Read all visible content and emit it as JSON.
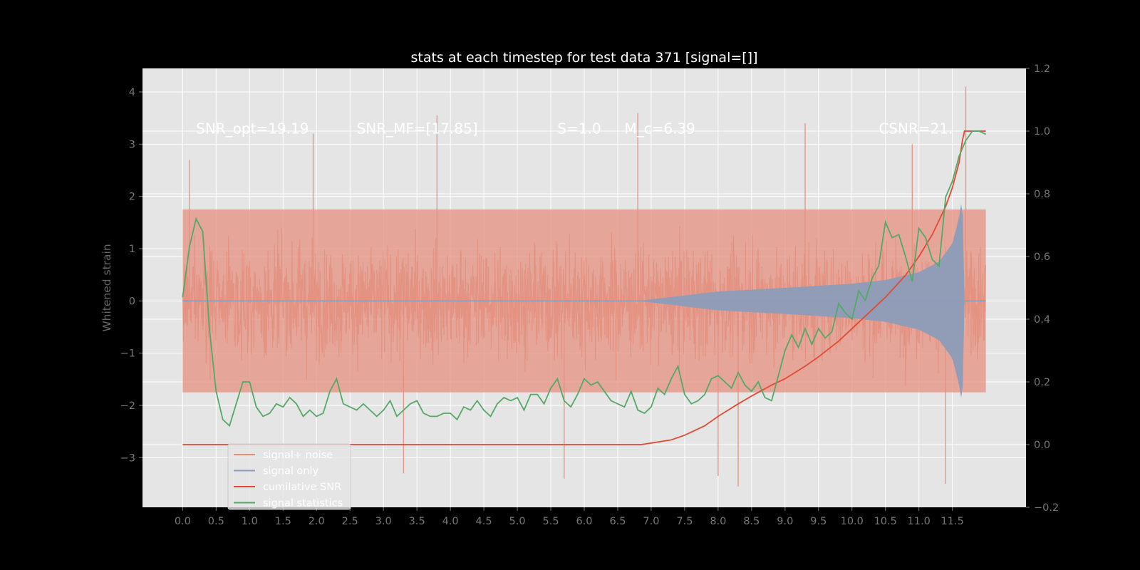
{
  "chart_data": {
    "type": "line",
    "title": "stats at each timestep for test data 371 [signal=[]]",
    "ylabel": "Whitened strain",
    "y2label": "",
    "xlabel": "",
    "xlim": [
      -0.6,
      12.6
    ],
    "ylim": [
      -3.95,
      4.45
    ],
    "y2lim": [
      -0.2,
      1.2
    ],
    "x_ticks": [
      0.0,
      0.5,
      1.0,
      1.5,
      2.0,
      2.5,
      3.0,
      3.5,
      4.0,
      4.5,
      5.0,
      5.5,
      6.0,
      6.5,
      7.0,
      7.5,
      8.0,
      8.5,
      9.0,
      9.5,
      10.0,
      10.5,
      11.0,
      11.5
    ],
    "x_tick_labels": [
      "0.0",
      "0.5",
      "1.0",
      "1.5",
      "2.0",
      "2.5",
      "3.0",
      "3.5",
      "4.0",
      "4.5",
      "5.0",
      "5.5",
      "6.0",
      "6.5",
      "7.0",
      "7.5",
      "8.0",
      "8.5",
      "9.0",
      "9.5",
      "10.0",
      "10.5",
      "11.0",
      "11.5"
    ],
    "y_ticks": [
      -3,
      -2,
      -1,
      0,
      1,
      2,
      3,
      4
    ],
    "y_tick_labels": [
      "−3",
      "−2",
      "−1",
      "0",
      "1",
      "2",
      "3",
      "4"
    ],
    "y2_ticks": [
      -0.2,
      0.0,
      0.2,
      0.4,
      0.6,
      0.8,
      1.0,
      1.2
    ],
    "y2_tick_labels": [
      "−0.2",
      "0.0",
      "0.2",
      "0.4",
      "0.6",
      "0.8",
      "1.0",
      "1.2"
    ],
    "grid": true,
    "legend_position": "lower-left",
    "annotations": [
      {
        "text": "SNR_opt=19.19",
        "x": 0.2,
        "y": 3.2
      },
      {
        "text": "SNR_MF=[17.85]",
        "x": 2.6,
        "y": 3.2
      },
      {
        "text": "S=1.0",
        "x": 5.6,
        "y": 3.2
      },
      {
        "text": "M_c=6.39",
        "x": 6.6,
        "y": 3.2
      },
      {
        "text": "CSNR=21.",
        "x": 10.4,
        "y": 3.2
      }
    ],
    "series": [
      {
        "name": "signal+ noise",
        "axis": "left",
        "color": "#e4907f",
        "kind": "noise",
        "x_start": 0.0,
        "x_end": 12.0,
        "envelope": 1.75,
        "outliers": [
          [
            0.1,
            2.7
          ],
          [
            1.95,
            3.2
          ],
          [
            3.8,
            3.55
          ],
          [
            3.3,
            -3.3
          ],
          [
            5.7,
            -3.4
          ],
          [
            6.8,
            3.6
          ],
          [
            8.0,
            -3.35
          ],
          [
            8.3,
            -3.55
          ],
          [
            9.3,
            3.4
          ],
          [
            11.7,
            4.1
          ],
          [
            11.4,
            -3.5
          ],
          [
            10.9,
            3.0
          ]
        ]
      },
      {
        "name": "signal only",
        "axis": "left",
        "color": "#8c9cb8",
        "kind": "chirp",
        "x_start": 0.0,
        "x_end": 12.0,
        "onset": 6.8,
        "merger": 11.65,
        "amplitude_profile": [
          [
            6.8,
            0.0
          ],
          [
            8.0,
            0.18
          ],
          [
            9.0,
            0.25
          ],
          [
            10.0,
            0.33
          ],
          [
            10.5,
            0.4
          ],
          [
            11.0,
            0.55
          ],
          [
            11.3,
            0.75
          ],
          [
            11.5,
            1.1
          ],
          [
            11.6,
            1.6
          ],
          [
            11.65,
            2.0
          ],
          [
            11.68,
            0.0
          ]
        ]
      },
      {
        "name": "cumilative SNR",
        "axis": "right",
        "color": "#e24a33",
        "x": [
          0.0,
          6.5,
          6.85,
          7.0,
          7.3,
          7.5,
          7.8,
          8.0,
          8.3,
          8.5,
          8.8,
          9.0,
          9.3,
          9.5,
          9.8,
          10.0,
          10.3,
          10.5,
          10.8,
          11.0,
          11.2,
          11.4,
          11.5,
          11.6,
          11.65,
          11.68,
          12.0
        ],
        "values": [
          0.0,
          0.0,
          0.0,
          0.005,
          0.015,
          0.03,
          0.06,
          0.09,
          0.13,
          0.155,
          0.19,
          0.21,
          0.25,
          0.28,
          0.33,
          0.37,
          0.43,
          0.47,
          0.54,
          0.6,
          0.67,
          0.76,
          0.82,
          0.9,
          0.97,
          1.0,
          1.0
        ]
      },
      {
        "name": "signal statistics",
        "axis": "right",
        "color": "#55a868",
        "x": [
          0.0,
          0.1,
          0.2,
          0.3,
          0.4,
          0.5,
          0.6,
          0.7,
          0.8,
          0.9,
          1.0,
          1.1,
          1.2,
          1.3,
          1.4,
          1.5,
          1.6,
          1.7,
          1.8,
          1.9,
          2.0,
          2.1,
          2.2,
          2.3,
          2.4,
          2.5,
          2.6,
          2.7,
          2.8,
          2.9,
          3.0,
          3.1,
          3.2,
          3.3,
          3.4,
          3.5,
          3.6,
          3.7,
          3.8,
          3.9,
          4.0,
          4.1,
          4.2,
          4.3,
          4.4,
          4.5,
          4.6,
          4.7,
          4.8,
          4.9,
          5.0,
          5.1,
          5.2,
          5.3,
          5.4,
          5.5,
          5.6,
          5.7,
          5.8,
          5.9,
          6.0,
          6.1,
          6.2,
          6.3,
          6.4,
          6.5,
          6.6,
          6.7,
          6.8,
          6.9,
          7.0,
          7.1,
          7.2,
          7.3,
          7.4,
          7.5,
          7.6,
          7.7,
          7.8,
          7.9,
          8.0,
          8.1,
          8.2,
          8.3,
          8.4,
          8.5,
          8.6,
          8.7,
          8.8,
          8.9,
          9.0,
          9.1,
          9.2,
          9.3,
          9.4,
          9.5,
          9.6,
          9.7,
          9.8,
          9.9,
          10.0,
          10.1,
          10.2,
          10.3,
          10.4,
          10.5,
          10.6,
          10.7,
          10.8,
          10.9,
          11.0,
          11.1,
          11.2,
          11.3,
          11.4,
          11.5,
          11.6,
          11.7,
          11.8,
          11.9,
          12.0
        ],
        "values": [
          0.47,
          0.63,
          0.72,
          0.68,
          0.37,
          0.17,
          0.08,
          0.06,
          0.13,
          0.2,
          0.2,
          0.12,
          0.09,
          0.1,
          0.13,
          0.12,
          0.15,
          0.13,
          0.09,
          0.11,
          0.09,
          0.1,
          0.17,
          0.21,
          0.13,
          0.12,
          0.11,
          0.13,
          0.11,
          0.09,
          0.11,
          0.14,
          0.09,
          0.11,
          0.13,
          0.14,
          0.1,
          0.09,
          0.09,
          0.1,
          0.1,
          0.08,
          0.12,
          0.11,
          0.14,
          0.11,
          0.09,
          0.13,
          0.15,
          0.14,
          0.15,
          0.11,
          0.16,
          0.16,
          0.13,
          0.18,
          0.21,
          0.14,
          0.12,
          0.16,
          0.21,
          0.19,
          0.2,
          0.17,
          0.14,
          0.13,
          0.12,
          0.17,
          0.11,
          0.1,
          0.12,
          0.18,
          0.16,
          0.21,
          0.25,
          0.16,
          0.13,
          0.14,
          0.16,
          0.21,
          0.22,
          0.2,
          0.18,
          0.23,
          0.19,
          0.17,
          0.2,
          0.15,
          0.14,
          0.22,
          0.3,
          0.35,
          0.31,
          0.37,
          0.32,
          0.37,
          0.34,
          0.36,
          0.45,
          0.42,
          0.4,
          0.49,
          0.46,
          0.53,
          0.57,
          0.71,
          0.66,
          0.67,
          0.6,
          0.52,
          0.69,
          0.66,
          0.59,
          0.57,
          0.79,
          0.84,
          0.92,
          0.97,
          1.0,
          1.0,
          0.99
        ]
      }
    ],
    "legend": [
      {
        "label": "signal+ noise",
        "color": "#e4907f"
      },
      {
        "label": "signal only",
        "color": "#8c9cb8"
      },
      {
        "label": "cumilative SNR",
        "color": "#e24a33"
      },
      {
        "label": "signal statistics",
        "color": "#55a868"
      }
    ],
    "colors": {
      "figure_bg": "#000000",
      "axes_bg": "#e5e5e5",
      "grid": "#ffffff",
      "tick_text": "#777777"
    }
  }
}
